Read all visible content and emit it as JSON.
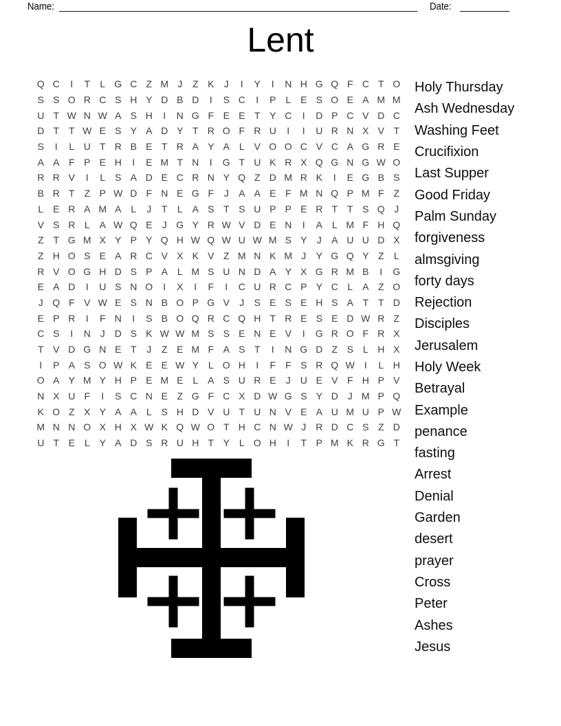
{
  "header": {
    "name_label": "Name:",
    "date_label": "Date:"
  },
  "title": "Lent",
  "puzzle": {
    "rows": [
      "QCITLGCZMJZKJIYINHGQFCTO",
      "SSORCSHYDBDISCIPLESOEAMM",
      "UTWNWASHINGFEETYCIDPCVDC",
      "DTTWESYADYTROFRUIIURNXVT",
      "SILUTRBETRAYALVOOCVCAGRE",
      "AAFPEHIEMTNIGTUKRXQGNGWO",
      "RRVILSADECRNYQZDMRKIEGBS",
      "BRTZPWDFNEGFJAAEFMNQPMFZ",
      "LERAMALJTLASTSUPPERTTSQJ",
      "VSRLAWQEJGYRWVDENIALMFHQ",
      "ZTGMXYPYQHWQWUWMSYJAUUDX",
      "ZHOSEARCVXKVZMNKMJYGQYZL",
      "RVOGHDSPALMSUNDAYXGRMBIG",
      "EADIUSNOIXIFICURCPYCLAZO",
      "JQFVWESNBOPGVJSESEHSATTD",
      "EPRIFNISBOQRCQHTRESEDWRZ",
      "CSINJDSKWWMSSENEVIGROFRX",
      "TVDGNETJZEMFASTINGDZSLHX",
      "IPASOWKEEWYLOHIFFSRQWILH",
      "OAYMYHPEMELASUREJUEVFHPV",
      "NXUFISCNEZGFCXDWGSYDJMPQ",
      "KOZXYAALSHDVUTUNVEAUMUPW",
      "MNNOXHXWKQWOTHCNWJRDCSZD",
      "UTELYADSRUHTYLOHITPMKRGT"
    ]
  },
  "word_list": [
    "Holy Thursday",
    "Ash Wednesday",
    "Washing Feet",
    "Crucifixion",
    "Last Supper",
    "Good Friday",
    "Palm Sunday",
    "forgiveness",
    "almsgiving",
    "forty days",
    "Rejection",
    "Disciples",
    "Jerusalem",
    "Holy Week",
    "Betrayal",
    "Example",
    "penance",
    "fasting",
    "Arrest",
    "Denial",
    "Garden",
    "desert",
    "prayer",
    "Cross",
    "Peter",
    "Ashes",
    "Jesus"
  ],
  "image": {
    "icon": "jerusalem-cross",
    "color": "#000000"
  },
  "colors": {
    "background": "#ffffff",
    "grid_letter": "#3d3d3d",
    "text": "#000000"
  }
}
